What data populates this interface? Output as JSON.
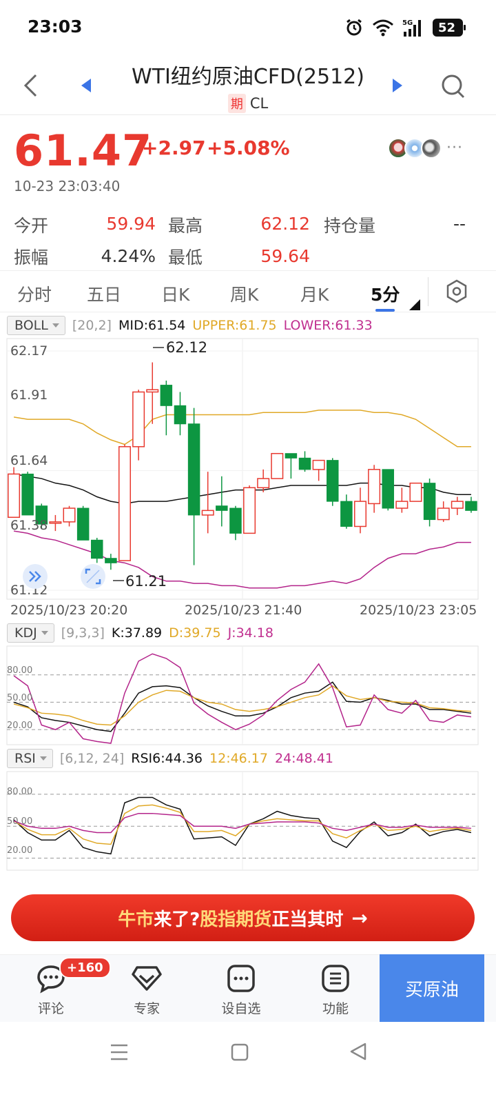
{
  "status_bar": {
    "time": "23:03",
    "battery": "52",
    "network": "5G"
  },
  "header": {
    "title": "WTI纽约原油CFD(2512)",
    "badge": "期",
    "code": "CL"
  },
  "quote": {
    "price": "61.47",
    "change": "+2.97",
    "change_pct": "+5.08%",
    "timestamp": "10-23 23:03:40",
    "more": "···"
  },
  "stats": {
    "open_label": "今开",
    "open_value": "59.94",
    "high_label": "最高",
    "high_value": "62.12",
    "oi_label": "持仓量",
    "oi_value": "--",
    "amp_label": "振幅",
    "amp_value": "4.24%",
    "low_label": "最低",
    "low_value": "59.64"
  },
  "tabs": [
    "分时",
    "五日",
    "日K",
    "周K",
    "月K",
    "5分"
  ],
  "active_tab": "5分",
  "boll": {
    "name": "BOLL",
    "params": "[20,2]",
    "mid": "MID:61.54",
    "upper": "UPPER:61.75",
    "lower": "LOWER:61.33",
    "y_labels": [
      "62.17",
      "61.91",
      "61.64",
      "61.38",
      "61.12"
    ],
    "max_label": "62.12",
    "min_label": "61.21",
    "x_labels": [
      "2025/10/23 20:20",
      "2025/10/23 21:40",
      "2025/10/23 23:05"
    ]
  },
  "kdj": {
    "name": "KDJ",
    "params": "[9,3,3]",
    "k": "K:37.89",
    "d": "D:39.75",
    "j": "J:34.18",
    "y_labels": [
      "80.00",
      "50.00",
      "20.00"
    ]
  },
  "rsi": {
    "name": "RSI",
    "params": "[6,12, 24]",
    "r6": "RSI6:44.36",
    "r12": "12:46.17",
    "r24": "24:48.41",
    "y_labels": [
      "80.00",
      "50.00",
      "20.00"
    ]
  },
  "banner": {
    "part1": "牛市",
    "part2": "来了? ",
    "part3": "股指期货",
    "part4": "正当其时",
    "arrow": "→"
  },
  "bottom_bar": {
    "comment_label": "评论",
    "comment_badge": "+160",
    "expert_label": "专家",
    "watch_label": "设自选",
    "func_label": "功能",
    "buy_label": "买原油"
  },
  "colors": {
    "up": "#e8392f",
    "down": "#0d9641",
    "mid_line": "#111111",
    "upper_line": "#e0a826",
    "lower_line": "#b3238a",
    "accent": "#4a87ea"
  },
  "chart_data": [
    {
      "type": "candlestick",
      "title": "BOLL [20,2]",
      "interval": "5分",
      "ylim": [
        61.12,
        62.17
      ],
      "x_start": "2025/10/23 20:20",
      "x_end": "2025/10/23 23:05",
      "candles": [
        {
          "o": 61.44,
          "h": 61.66,
          "l": 61.44,
          "c": 61.63
        },
        {
          "o": 61.63,
          "h": 61.64,
          "l": 61.45,
          "c": 61.45
        },
        {
          "o": 61.49,
          "h": 61.5,
          "l": 61.39,
          "c": 61.41
        },
        {
          "o": 61.42,
          "h": 61.45,
          "l": 61.38,
          "c": 61.42
        },
        {
          "o": 61.42,
          "h": 61.49,
          "l": 61.4,
          "c": 61.48
        },
        {
          "o": 61.48,
          "h": 61.49,
          "l": 61.34,
          "c": 61.34
        },
        {
          "o": 61.34,
          "h": 61.35,
          "l": 61.24,
          "c": 61.26
        },
        {
          "o": 61.26,
          "h": 61.28,
          "l": 61.21,
          "c": 61.24
        },
        {
          "o": 61.25,
          "h": 61.76,
          "l": 61.25,
          "c": 61.75
        },
        {
          "o": 61.75,
          "h": 62.0,
          "l": 61.69,
          "c": 61.99
        },
        {
          "o": 61.99,
          "h": 62.12,
          "l": 61.85,
          "c": 62.0
        },
        {
          "o": 62.02,
          "h": 62.04,
          "l": 61.8,
          "c": 61.93
        },
        {
          "o": 61.93,
          "h": 61.99,
          "l": 61.8,
          "c": 61.85
        },
        {
          "o": 61.85,
          "h": 61.92,
          "l": 61.23,
          "c": 61.45
        },
        {
          "o": 61.45,
          "h": 61.64,
          "l": 61.37,
          "c": 61.47
        },
        {
          "o": 61.49,
          "h": 61.62,
          "l": 61.4,
          "c": 61.47
        },
        {
          "o": 61.48,
          "h": 61.49,
          "l": 61.34,
          "c": 61.37
        },
        {
          "o": 61.37,
          "h": 61.58,
          "l": 61.37,
          "c": 61.57
        },
        {
          "o": 61.57,
          "h": 61.65,
          "l": 61.55,
          "c": 61.61
        },
        {
          "o": 61.61,
          "h": 61.72,
          "l": 61.61,
          "c": 61.72
        },
        {
          "o": 61.72,
          "h": 61.72,
          "l": 61.61,
          "c": 61.7
        },
        {
          "o": 61.7,
          "h": 61.73,
          "l": 61.64,
          "c": 61.65
        },
        {
          "o": 61.65,
          "h": 61.69,
          "l": 61.6,
          "c": 61.69
        },
        {
          "o": 61.69,
          "h": 61.7,
          "l": 61.49,
          "c": 61.51
        },
        {
          "o": 61.51,
          "h": 61.54,
          "l": 61.39,
          "c": 61.4
        },
        {
          "o": 61.4,
          "h": 61.57,
          "l": 61.37,
          "c": 61.51
        },
        {
          "o": 61.5,
          "h": 61.67,
          "l": 61.46,
          "c": 61.65
        },
        {
          "o": 61.65,
          "h": 61.65,
          "l": 61.47,
          "c": 61.48
        },
        {
          "o": 61.48,
          "h": 61.57,
          "l": 61.46,
          "c": 61.51
        },
        {
          "o": 61.51,
          "h": 61.59,
          "l": 61.51,
          "c": 61.59
        },
        {
          "o": 61.59,
          "h": 61.61,
          "l": 61.4,
          "c": 61.43
        },
        {
          "o": 61.43,
          "h": 61.51,
          "l": 61.42,
          "c": 61.48
        },
        {
          "o": 61.48,
          "h": 61.53,
          "l": 61.45,
          "c": 61.51
        },
        {
          "o": 61.51,
          "h": 61.53,
          "l": 61.46,
          "c": 61.47
        }
      ],
      "mid": [
        61.63,
        61.62,
        61.61,
        61.59,
        61.58,
        61.56,
        61.53,
        61.51,
        61.5,
        61.51,
        61.51,
        61.51,
        61.52,
        61.53,
        61.54,
        61.55,
        61.56,
        61.56,
        61.56,
        61.57,
        61.58,
        61.58,
        61.58,
        61.58,
        61.58,
        61.59,
        61.59,
        61.58,
        61.58,
        61.57,
        61.57,
        61.55,
        61.54,
        61.54
      ],
      "upper": [
        61.88,
        61.87,
        61.87,
        61.87,
        61.87,
        61.85,
        61.81,
        61.78,
        61.76,
        61.8,
        61.87,
        61.89,
        61.89,
        61.89,
        61.89,
        61.89,
        61.89,
        61.89,
        61.9,
        61.9,
        61.9,
        61.9,
        61.91,
        61.91,
        61.91,
        61.91,
        61.9,
        61.9,
        61.89,
        61.87,
        61.83,
        61.79,
        61.75,
        61.75
      ],
      "lower": [
        61.38,
        61.37,
        61.35,
        61.34,
        61.32,
        61.3,
        61.28,
        61.25,
        61.24,
        61.22,
        61.18,
        61.16,
        61.16,
        61.15,
        61.15,
        61.14,
        61.14,
        61.13,
        61.13,
        61.13,
        61.14,
        61.14,
        61.15,
        61.16,
        61.15,
        61.17,
        61.22,
        61.26,
        61.28,
        61.28,
        61.3,
        61.31,
        61.33,
        61.33
      ]
    },
    {
      "type": "line",
      "title": "KDJ [9,3,3]",
      "ylim": [
        5,
        110
      ],
      "series": [
        {
          "name": "K",
          "values": [
            50,
            45,
            33,
            30,
            28,
            24,
            20,
            18,
            38,
            60,
            67,
            68,
            66,
            55,
            46,
            40,
            35,
            35,
            38,
            45,
            55,
            60,
            62,
            72,
            51,
            50,
            55,
            52,
            48,
            48,
            42,
            42,
            40,
            38
          ]
        },
        {
          "name": "D",
          "values": [
            48,
            44,
            38,
            37,
            35,
            30,
            26,
            25,
            35,
            50,
            58,
            63,
            62,
            55,
            50,
            48,
            42,
            40,
            42,
            45,
            50,
            55,
            58,
            68,
            57,
            53,
            55,
            51,
            50,
            49,
            44,
            43,
            41,
            40
          ]
        },
        {
          "name": "J",
          "values": [
            79,
            68,
            25,
            20,
            28,
            10,
            7,
            5,
            60,
            95,
            103,
            98,
            88,
            49,
            37,
            28,
            20,
            26,
            36,
            52,
            64,
            72,
            92,
            66,
            23,
            25,
            58,
            42,
            38,
            52,
            30,
            28,
            36,
            34
          ]
        }
      ]
    },
    {
      "type": "line",
      "title": "RSI [6,12,24]",
      "ylim": [
        10,
        100
      ],
      "series": [
        {
          "name": "RSI6",
          "values": [
            56,
            44,
            37,
            37,
            46,
            30,
            26,
            24,
            72,
            77,
            77,
            70,
            66,
            38,
            39,
            40,
            32,
            52,
            57,
            64,
            60,
            58,
            57,
            36,
            30,
            45,
            54,
            41,
            44,
            52,
            41,
            45,
            47,
            44
          ]
        },
        {
          "name": "RSI12",
          "values": [
            55,
            47,
            42,
            42,
            48,
            38,
            34,
            33,
            62,
            69,
            70,
            67,
            63,
            45,
            45,
            46,
            41,
            52,
            55,
            57,
            56,
            55,
            55,
            43,
            39,
            46,
            52,
            46,
            47,
            50,
            45,
            47,
            48,
            46
          ]
        },
        {
          "name": "RSI24",
          "values": [
            55,
            50,
            48,
            48,
            50,
            46,
            44,
            44,
            58,
            62,
            62,
            61,
            60,
            50,
            50,
            50,
            48,
            52,
            53,
            54,
            54,
            54,
            53,
            48,
            46,
            49,
            52,
            49,
            49,
            51,
            49,
            49,
            49,
            48
          ]
        }
      ]
    }
  ]
}
